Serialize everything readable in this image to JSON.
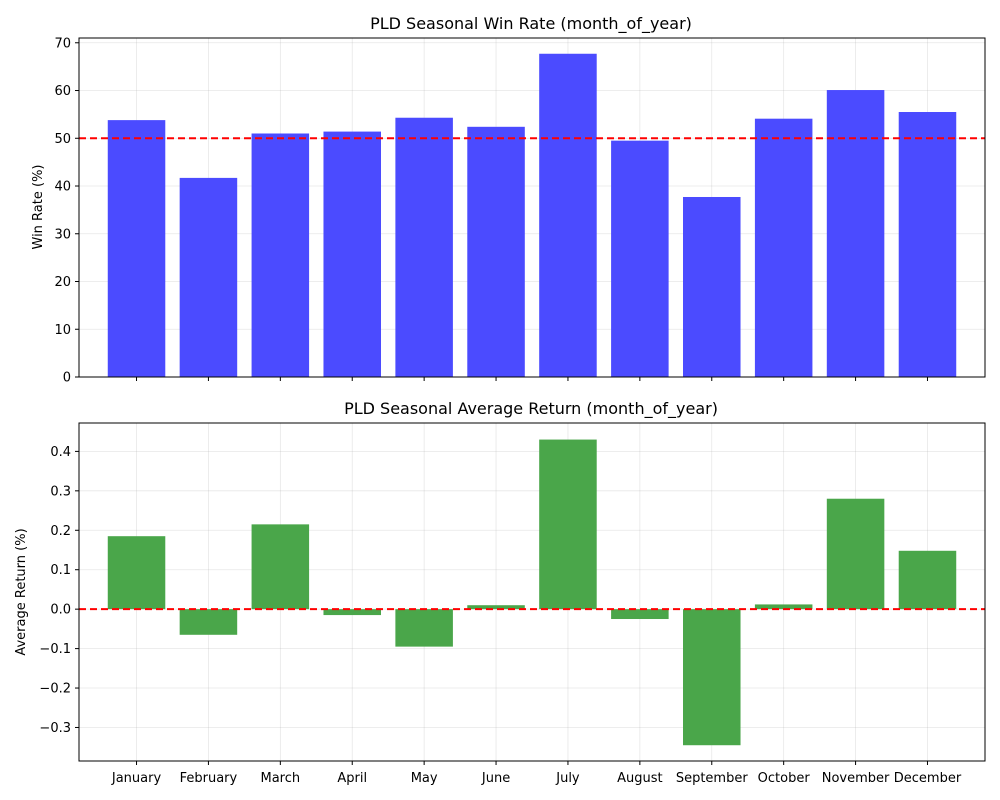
{
  "chart_data": [
    {
      "type": "bar",
      "title": "PLD Seasonal Win Rate (month_of_year)",
      "xlabel": "",
      "ylabel": "Win Rate (%)",
      "categories": [
        "January",
        "February",
        "March",
        "April",
        "May",
        "June",
        "July",
        "August",
        "September",
        "October",
        "November",
        "December"
      ],
      "values": [
        53.8,
        41.7,
        51.0,
        51.4,
        54.3,
        52.4,
        67.7,
        49.5,
        37.7,
        54.1,
        60.1,
        55.5
      ],
      "ylim": [
        0,
        71
      ],
      "yticks": [
        0,
        10,
        20,
        30,
        40,
        50,
        60,
        70
      ],
      "show_xtick_labels": false,
      "reference_line": 50,
      "bar_color": "#4b4bff",
      "line_color": "#ff0000",
      "grid": true
    },
    {
      "type": "bar",
      "title": "PLD Seasonal Average Return (month_of_year)",
      "xlabel": "",
      "ylabel": "Average Return (%)",
      "categories": [
        "January",
        "February",
        "March",
        "April",
        "May",
        "June",
        "July",
        "August",
        "September",
        "October",
        "November",
        "December"
      ],
      "values": [
        0.185,
        -0.065,
        0.215,
        -0.015,
        -0.095,
        0.01,
        0.43,
        -0.025,
        -0.345,
        0.012,
        0.28,
        0.148
      ],
      "ylim": [
        -0.385,
        0.472
      ],
      "yticks": [
        -0.3,
        -0.2,
        -0.1,
        0.0,
        0.1,
        0.2,
        0.3,
        0.4
      ],
      "ytick_labels": [
        "−0.3",
        "−0.2",
        "−0.1",
        "0.0",
        "0.1",
        "0.2",
        "0.3",
        "0.4"
      ],
      "show_xtick_labels": true,
      "reference_line": 0,
      "bar_color": "#4aa64a",
      "line_color": "#ff0000",
      "grid": true
    }
  ]
}
